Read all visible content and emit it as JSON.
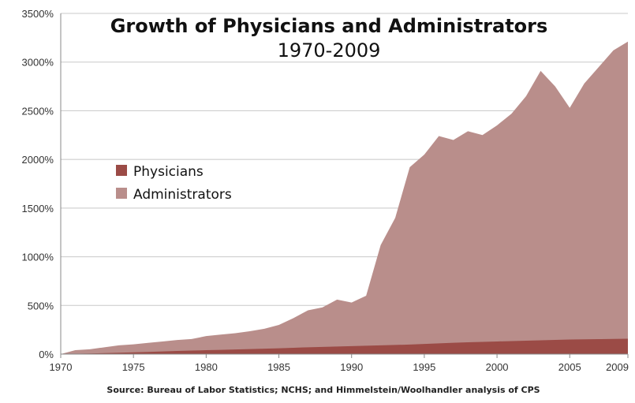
{
  "chart_data": {
    "type": "area",
    "title": "Growth of Physicians and Administrators",
    "subtitle": "1970-2009",
    "xlabel": "",
    "ylabel": "",
    "x": [
      1970,
      1971,
      1972,
      1973,
      1974,
      1975,
      1976,
      1977,
      1978,
      1979,
      1980,
      1981,
      1982,
      1983,
      1984,
      1985,
      1986,
      1987,
      1988,
      1989,
      1990,
      1991,
      1992,
      1993,
      1994,
      1995,
      1996,
      1997,
      1998,
      1999,
      2000,
      2001,
      2002,
      2003,
      2004,
      2005,
      2006,
      2007,
      2008,
      2009
    ],
    "xlim": [
      1970,
      2009
    ],
    "ylim": [
      0,
      3500
    ],
    "x_ticks": [
      1970,
      1975,
      1980,
      1985,
      1990,
      1995,
      2000,
      2005,
      2009
    ],
    "x_tick_labels": [
      "1970",
      "1975",
      "1980",
      "1985",
      "1990",
      "1995",
      "2000",
      "2005",
      "2009"
    ],
    "y_ticks": [
      0,
      500,
      1000,
      1500,
      2000,
      2500,
      3000,
      3500
    ],
    "y_tick_labels": [
      "0%",
      "500%",
      "1000%",
      "1500%",
      "2000%",
      "2500%",
      "3000%",
      "3500%"
    ],
    "grid": true,
    "legend_position": "left-middle",
    "stacking": "overlapping",
    "series": [
      {
        "name": "Administrators",
        "color": "#b98e8b",
        "values": [
          0,
          40,
          50,
          70,
          90,
          100,
          115,
          130,
          145,
          155,
          185,
          200,
          215,
          235,
          260,
          300,
          370,
          450,
          480,
          560,
          530,
          600,
          1120,
          1400,
          1920,
          2050,
          2240,
          2200,
          2290,
          2250,
          2350,
          2470,
          2650,
          2910,
          2750,
          2530,
          2780,
          2950,
          3120,
          3210
        ]
      },
      {
        "name": "Physicians",
        "color": "#9b4b46",
        "values": [
          0,
          3,
          6,
          10,
          14,
          18,
          22,
          27,
          32,
          36,
          40,
          44,
          48,
          52,
          56,
          60,
          65,
          70,
          74,
          78,
          82,
          86,
          90,
          94,
          98,
          104,
          110,
          116,
          122,
          126,
          130,
          134,
          138,
          142,
          146,
          150,
          152,
          154,
          156,
          158
        ]
      }
    ],
    "source": "Source: Bureau of Labor Statistics; NCHS; and Himmelstein/Woolhandler analysis of CPS"
  }
}
